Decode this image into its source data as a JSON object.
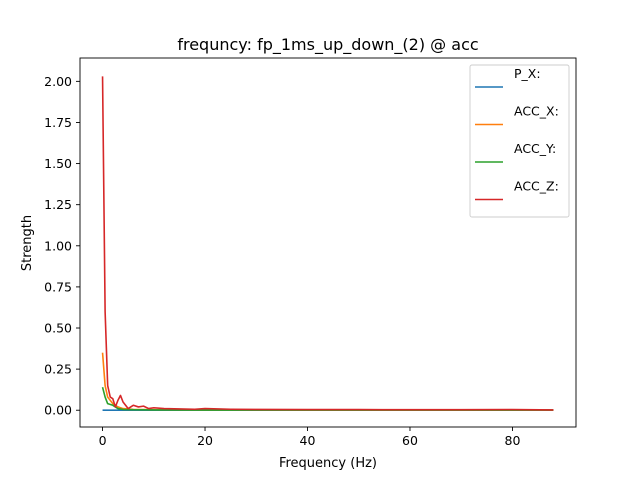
{
  "chart_data": {
    "type": "line",
    "title": "frequncy: fp_1ms_up_down_(2) @ acc",
    "xlabel": "Frequency (Hz)",
    "ylabel": "Strength",
    "xlim": [
      -4.4,
      92.4
    ],
    "ylim": [
      -0.102,
      2.142
    ],
    "x_ticks": [
      0,
      20,
      40,
      60,
      80
    ],
    "x_tick_labels": [
      "0",
      "20",
      "40",
      "60",
      "80"
    ],
    "y_ticks": [
      0.0,
      0.25,
      0.5,
      0.75,
      1.0,
      1.25,
      1.5,
      1.75,
      2.0
    ],
    "y_tick_labels": [
      "0.00",
      "0.25",
      "0.50",
      "0.75",
      "1.00",
      "1.25",
      "1.50",
      "1.75",
      "2.00"
    ],
    "grid": false,
    "legend_position": "top-right",
    "series": [
      {
        "name": "P_X:",
        "color": "#1f77b4",
        "x": [
          0,
          88
        ],
        "y": [
          0.0,
          0.0
        ]
      },
      {
        "name": "ACC_X:",
        "color": "#ff7f0e",
        "x": [
          0,
          0.5,
          1,
          2,
          3,
          4,
          6,
          10,
          20,
          40,
          60,
          88
        ],
        "y": [
          0.35,
          0.15,
          0.08,
          0.04,
          0.02,
          0.01,
          0.005,
          0.003,
          0.002,
          0.001,
          0.001,
          0.001
        ]
      },
      {
        "name": "ACC_Y:",
        "color": "#2ca02c",
        "x": [
          0,
          0.5,
          1,
          2,
          3,
          4,
          6,
          10,
          20,
          40,
          60,
          88
        ],
        "y": [
          0.14,
          0.08,
          0.04,
          0.03,
          0.01,
          0.005,
          0.003,
          0.002,
          0.001,
          0.001,
          0.001,
          0.001
        ]
      },
      {
        "name": "ACC_Z:",
        "color": "#d62728",
        "x": [
          0,
          0.5,
          1,
          1.5,
          2,
          2.5,
          3,
          3.5,
          4,
          5,
          6,
          7,
          8,
          9,
          10,
          12,
          15,
          18,
          20,
          25,
          30,
          40,
          50,
          60,
          70,
          80,
          88
        ],
        "y": [
          2.03,
          0.6,
          0.15,
          0.08,
          0.07,
          0.02,
          0.06,
          0.09,
          0.05,
          0.01,
          0.03,
          0.02,
          0.025,
          0.01,
          0.015,
          0.01,
          0.008,
          0.006,
          0.01,
          0.006,
          0.005,
          0.004,
          0.004,
          0.003,
          0.003,
          0.004,
          0.002
        ]
      }
    ]
  }
}
